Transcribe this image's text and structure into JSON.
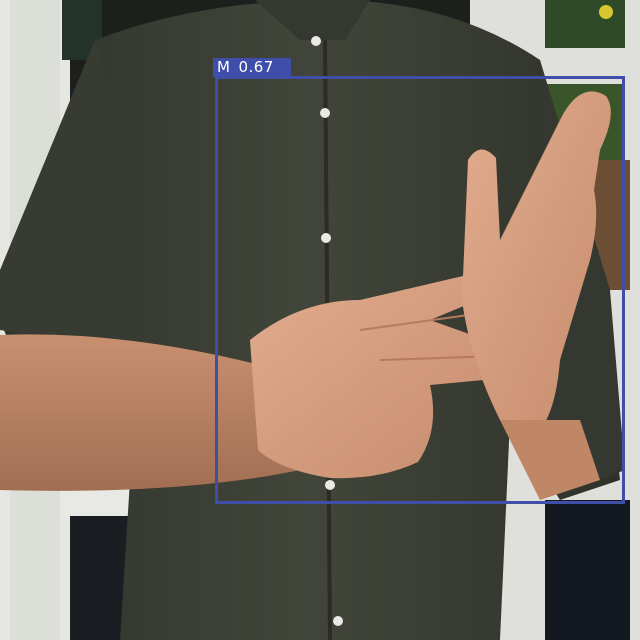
{
  "detection": {
    "class_label": "M",
    "confidence": "0.67",
    "box_color": "#3f4ea8"
  },
  "scene": {
    "shirt_color": "#3d4035",
    "skin_color": "#c98f6e",
    "window_frame_color": "#e8e9e4"
  }
}
